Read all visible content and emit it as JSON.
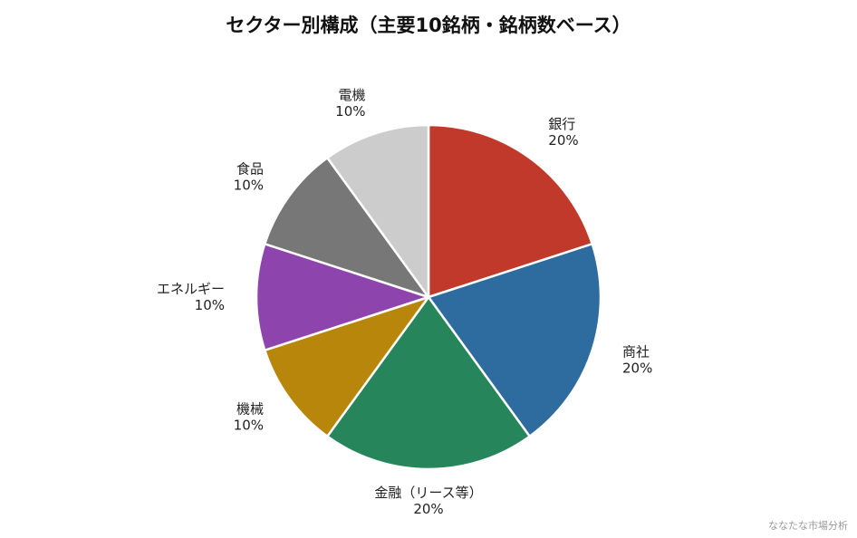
{
  "chart_data": {
    "type": "pie",
    "title": "セクター別構成（主要10銘柄・銘柄数ベース）",
    "slices": [
      {
        "label": "銀行",
        "value": 20,
        "value_label": "20%",
        "color": "#c0392b"
      },
      {
        "label": "商社",
        "value": 20,
        "value_label": "20%",
        "color": "#2e6b9e"
      },
      {
        "label": "金融（リース等）",
        "value": 20,
        "value_label": "20%",
        "color": "#27855c"
      },
      {
        "label": "機械",
        "value": 10,
        "value_label": "10%",
        "color": "#b8860b"
      },
      {
        "label": "エネルギー",
        "value": 10,
        "value_label": "10%",
        "color": "#8e44ad"
      },
      {
        "label": "食品",
        "value": 10,
        "value_label": "10%",
        "color": "#777777"
      },
      {
        "label": "電機",
        "value": 10,
        "value_label": "10%",
        "color": "#cccccc"
      }
    ],
    "start_angle": "12 o'clock",
    "direction": "clockwise",
    "legend": "none"
  },
  "watermark": "ななたな市場分析"
}
